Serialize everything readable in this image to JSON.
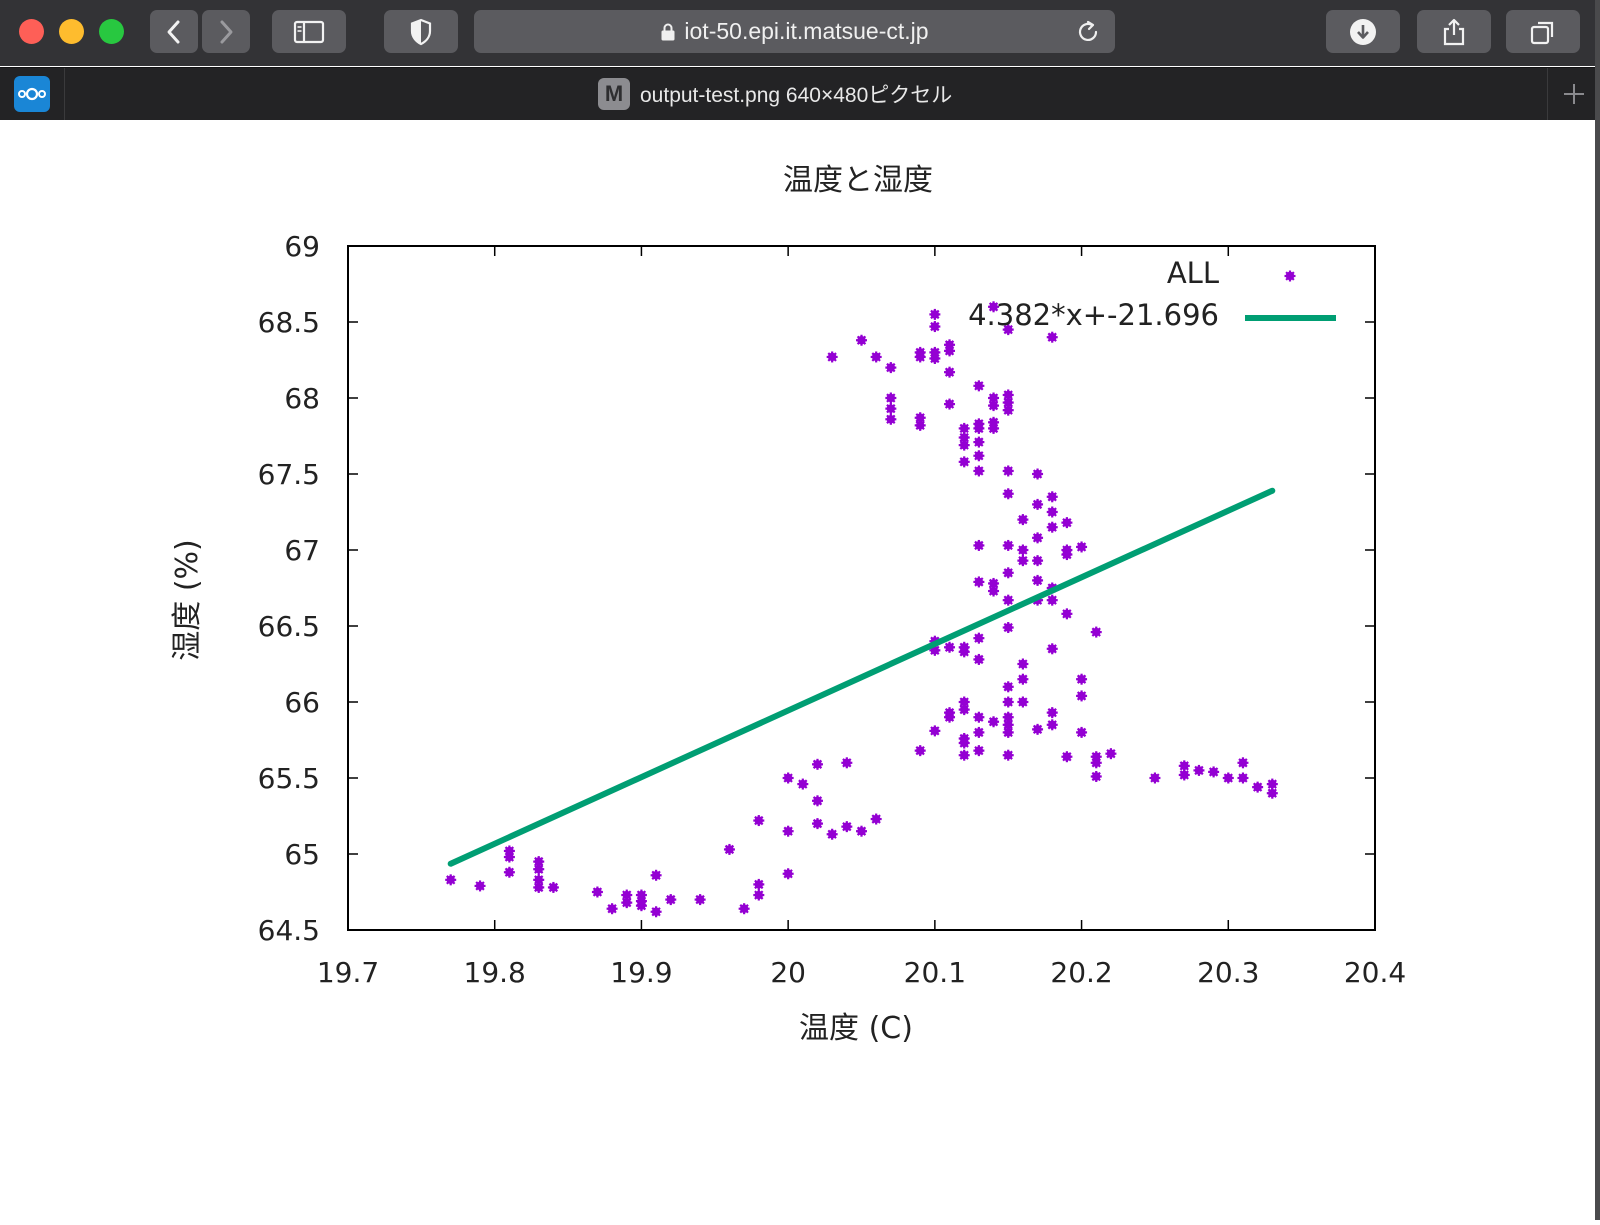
{
  "browser": {
    "url": "iot-50.epi.it.matsue-ct.jp",
    "tab": {
      "favicon_letter": "M",
      "title": "output-test.png 640×480ピクセル"
    }
  },
  "icons": [
    "close-dot",
    "minimize-dot",
    "zoom-dot",
    "back-icon",
    "forward-icon",
    "sidebar-icon",
    "shield-icon",
    "lock-icon",
    "reload-icon",
    "download-icon",
    "share-icon",
    "tabs-icon",
    "nextcloud-icon",
    "new-tab-icon"
  ],
  "colors": {
    "points": "#9400d3",
    "fit_line": "#009e73",
    "toolbar": "#333336",
    "tabbar": "#232325"
  },
  "chart_data": {
    "type": "scatter",
    "title": "温度と湿度",
    "xlabel": "温度 (C)",
    "ylabel": "湿度 (%)",
    "xlim": [
      19.7,
      20.4
    ],
    "ylim": [
      64.5,
      69
    ],
    "xticks": [
      "19.7",
      "19.8",
      "19.9",
      "20",
      "20.1",
      "20.2",
      "20.3",
      "20.4"
    ],
    "yticks": [
      "64.5",
      "65",
      "65.5",
      "66",
      "66.5",
      "67",
      "67.5",
      "68",
      "68.5",
      "69"
    ],
    "legend_position": "top-right",
    "grid": false,
    "series": [
      {
        "name": "ALL",
        "kind": "points",
        "points": [
          [
            19.77,
            64.83
          ],
          [
            19.79,
            64.79
          ],
          [
            19.81,
            64.98
          ],
          [
            19.81,
            64.88
          ],
          [
            19.81,
            65.02
          ],
          [
            19.83,
            64.95
          ],
          [
            19.83,
            64.9
          ],
          [
            19.83,
            64.83
          ],
          [
            19.83,
            64.78
          ],
          [
            19.84,
            64.78
          ],
          [
            19.87,
            64.75
          ],
          [
            19.88,
            64.64
          ],
          [
            19.89,
            64.73
          ],
          [
            19.89,
            64.68
          ],
          [
            19.9,
            64.73
          ],
          [
            19.9,
            64.66
          ],
          [
            19.9,
            64.69
          ],
          [
            19.91,
            64.86
          ],
          [
            19.91,
            64.62
          ],
          [
            19.92,
            64.7
          ],
          [
            19.94,
            64.7
          ],
          [
            19.96,
            65.03
          ],
          [
            19.97,
            64.64
          ],
          [
            19.98,
            64.8
          ],
          [
            19.98,
            64.73
          ],
          [
            19.98,
            65.22
          ],
          [
            20.0,
            64.87
          ],
          [
            20.0,
            65.15
          ],
          [
            20.0,
            65.5
          ],
          [
            20.01,
            65.46
          ],
          [
            20.02,
            65.35
          ],
          [
            20.02,
            65.2
          ],
          [
            20.02,
            65.59
          ],
          [
            20.03,
            65.13
          ],
          [
            20.04,
            65.6
          ],
          [
            20.04,
            65.18
          ],
          [
            20.05,
            65.15
          ],
          [
            20.06,
            65.23
          ],
          [
            20.03,
            68.27
          ],
          [
            20.05,
            68.38
          ],
          [
            20.06,
            68.27
          ],
          [
            20.07,
            68.2
          ],
          [
            20.07,
            68.0
          ],
          [
            20.07,
            67.93
          ],
          [
            20.07,
            67.86
          ],
          [
            20.09,
            68.3
          ],
          [
            20.09,
            68.27
          ],
          [
            20.09,
            67.87
          ],
          [
            20.09,
            67.82
          ],
          [
            20.09,
            65.68
          ],
          [
            20.1,
            68.55
          ],
          [
            20.1,
            68.47
          ],
          [
            20.1,
            68.3
          ],
          [
            20.1,
            68.26
          ],
          [
            20.1,
            66.4
          ],
          [
            20.1,
            66.34
          ],
          [
            20.1,
            65.81
          ],
          [
            20.11,
            68.35
          ],
          [
            20.11,
            68.31
          ],
          [
            20.11,
            68.17
          ],
          [
            20.11,
            67.96
          ],
          [
            20.11,
            66.36
          ],
          [
            20.11,
            65.93
          ],
          [
            20.11,
            65.9
          ],
          [
            20.12,
            67.8
          ],
          [
            20.12,
            67.74
          ],
          [
            20.12,
            67.69
          ],
          [
            20.12,
            67.58
          ],
          [
            20.12,
            66.36
          ],
          [
            20.12,
            66.33
          ],
          [
            20.12,
            66.0
          ],
          [
            20.12,
            65.95
          ],
          [
            20.12,
            65.76
          ],
          [
            20.12,
            65.73
          ],
          [
            20.12,
            65.65
          ],
          [
            20.13,
            68.08
          ],
          [
            20.13,
            67.83
          ],
          [
            20.13,
            67.8
          ],
          [
            20.13,
            67.71
          ],
          [
            20.13,
            67.62
          ],
          [
            20.13,
            67.52
          ],
          [
            20.13,
            67.03
          ],
          [
            20.13,
            66.79
          ],
          [
            20.13,
            66.42
          ],
          [
            20.13,
            66.28
          ],
          [
            20.13,
            65.9
          ],
          [
            20.13,
            65.8
          ],
          [
            20.13,
            65.68
          ],
          [
            20.14,
            68.6
          ],
          [
            20.14,
            68.0
          ],
          [
            20.14,
            67.95
          ],
          [
            20.14,
            67.84
          ],
          [
            20.14,
            67.8
          ],
          [
            20.14,
            66.78
          ],
          [
            20.14,
            66.73
          ],
          [
            20.14,
            65.87
          ],
          [
            20.15,
            68.45
          ],
          [
            20.15,
            68.02
          ],
          [
            20.15,
            67.97
          ],
          [
            20.15,
            67.92
          ],
          [
            20.15,
            67.52
          ],
          [
            20.15,
            67.37
          ],
          [
            20.15,
            67.03
          ],
          [
            20.15,
            66.85
          ],
          [
            20.15,
            66.67
          ],
          [
            20.15,
            66.49
          ],
          [
            20.15,
            66.1
          ],
          [
            20.15,
            66.0
          ],
          [
            20.15,
            65.9
          ],
          [
            20.15,
            65.85
          ],
          [
            20.15,
            65.8
          ],
          [
            20.15,
            65.65
          ],
          [
            20.16,
            67.2
          ],
          [
            20.16,
            67.0
          ],
          [
            20.16,
            66.93
          ],
          [
            20.16,
            66.25
          ],
          [
            20.16,
            66.15
          ],
          [
            20.16,
            66.0
          ],
          [
            20.17,
            67.5
          ],
          [
            20.17,
            67.3
          ],
          [
            20.17,
            67.08
          ],
          [
            20.17,
            66.93
          ],
          [
            20.17,
            66.8
          ],
          [
            20.17,
            66.67
          ],
          [
            20.17,
            65.82
          ],
          [
            20.18,
            68.4
          ],
          [
            20.18,
            67.35
          ],
          [
            20.18,
            67.25
          ],
          [
            20.18,
            67.15
          ],
          [
            20.18,
            66.75
          ],
          [
            20.18,
            66.67
          ],
          [
            20.18,
            66.35
          ],
          [
            20.18,
            65.93
          ],
          [
            20.18,
            65.85
          ],
          [
            20.19,
            67.18
          ],
          [
            20.19,
            67.0
          ],
          [
            20.19,
            66.97
          ],
          [
            20.19,
            66.58
          ],
          [
            20.19,
            65.64
          ],
          [
            20.2,
            67.02
          ],
          [
            20.2,
            66.15
          ],
          [
            20.2,
            66.04
          ],
          [
            20.2,
            65.8
          ],
          [
            20.21,
            66.46
          ],
          [
            20.21,
            65.64
          ],
          [
            20.21,
            65.6
          ],
          [
            20.21,
            65.51
          ],
          [
            20.22,
            65.66
          ],
          [
            20.25,
            65.5
          ],
          [
            20.27,
            65.58
          ],
          [
            20.27,
            65.52
          ],
          [
            20.28,
            65.55
          ],
          [
            20.29,
            65.54
          ],
          [
            20.3,
            65.5
          ],
          [
            20.31,
            65.6
          ],
          [
            20.31,
            65.5
          ],
          [
            20.32,
            65.44
          ],
          [
            20.33,
            65.46
          ],
          [
            20.33,
            65.4
          ]
        ]
      },
      {
        "name": "4.382*x+-21.696",
        "kind": "line",
        "slope": 4.382,
        "intercept": -21.696,
        "x_range": [
          19.77,
          20.33
        ]
      }
    ]
  }
}
